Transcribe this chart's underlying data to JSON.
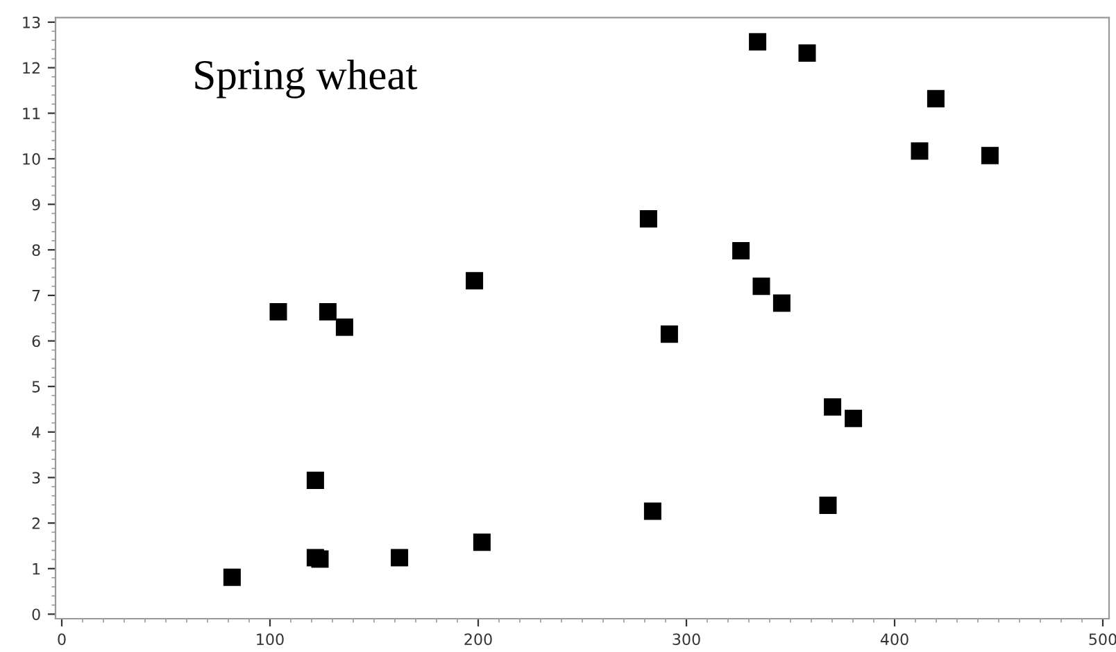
{
  "chart_data": {
    "type": "scatter",
    "annotations": [
      "Spring wheat"
    ],
    "x": [
      81.8,
      121.8,
      121.8,
      124,
      162.2,
      201.8,
      135.8,
      104,
      127.8,
      198.2,
      334.2,
      358,
      419.8,
      412,
      445.8,
      281.8,
      326.2,
      336,
      345.8,
      291.8,
      370.2,
      380.2,
      283.8,
      368
    ],
    "values": [
      0.81,
      2.94,
      1.24,
      1.21,
      1.24,
      1.58,
      6.3,
      6.64,
      6.64,
      7.32,
      12.57,
      12.32,
      11.32,
      10.17,
      10.07,
      8.68,
      7.98,
      7.2,
      6.83,
      6.15,
      4.55,
      4.3,
      2.26,
      2.39
    ],
    "color": "#000000",
    "marker": "square",
    "xlim": [
      -3,
      503
    ],
    "xticks": [
      0,
      100,
      200,
      300,
      400,
      500
    ],
    "ylim": [
      -0.1,
      13.1
    ],
    "yticks": [
      0,
      1,
      2,
      3,
      4,
      5,
      6,
      7,
      8,
      9,
      10,
      11,
      12,
      13
    ],
    "grid": false,
    "legend": false
  }
}
